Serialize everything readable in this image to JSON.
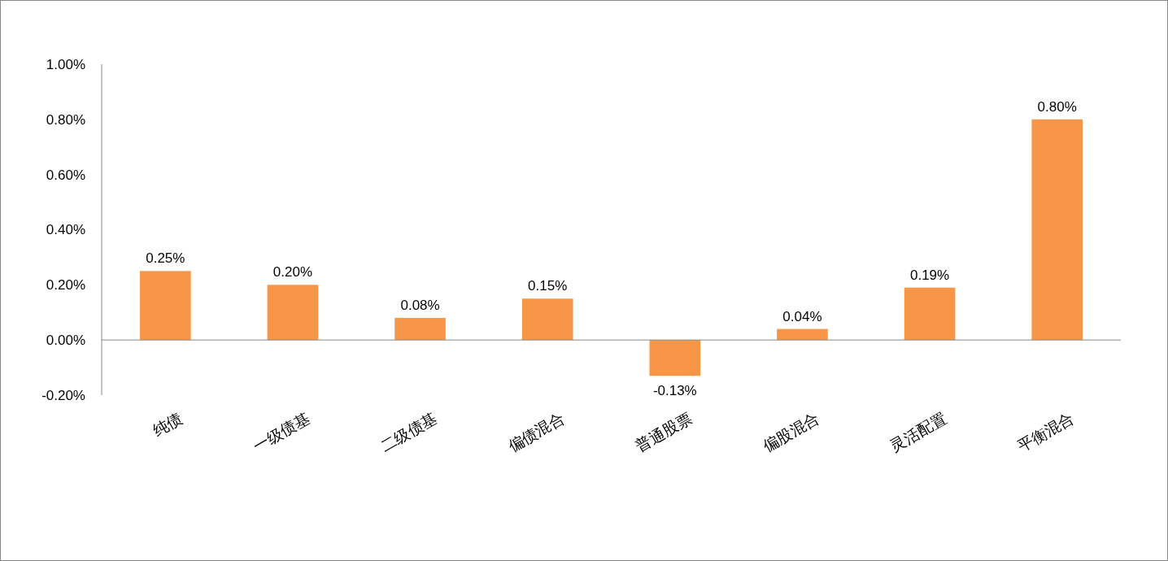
{
  "chart_data": {
    "type": "bar",
    "categories": [
      "纯债",
      "一级债基",
      "二级债基",
      "偏债混合",
      "普通股票",
      "偏股混合",
      "灵活配置",
      "平衡混合"
    ],
    "values": [
      0.25,
      0.2,
      0.08,
      0.15,
      -0.13,
      0.04,
      0.19,
      0.8
    ],
    "value_labels": [
      "0.25%",
      "0.20%",
      "0.08%",
      "0.15%",
      "-0.13%",
      "0.04%",
      "0.19%",
      "0.80%"
    ],
    "color": "#f79646",
    "ylim": [
      -0.2,
      1.0
    ],
    "yticks": [
      {
        "value": -0.2,
        "label": "-0.20%"
      },
      {
        "value": 0,
        "label": "0.00%"
      },
      {
        "value": 0.2,
        "label": "0.20%"
      },
      {
        "value": 0.4,
        "label": "0.40%"
      },
      {
        "value": 0.6,
        "label": "0.60%"
      },
      {
        "value": 0.8,
        "label": "0.80%"
      },
      {
        "value": 1.0,
        "label": "1.00%"
      }
    ]
  }
}
